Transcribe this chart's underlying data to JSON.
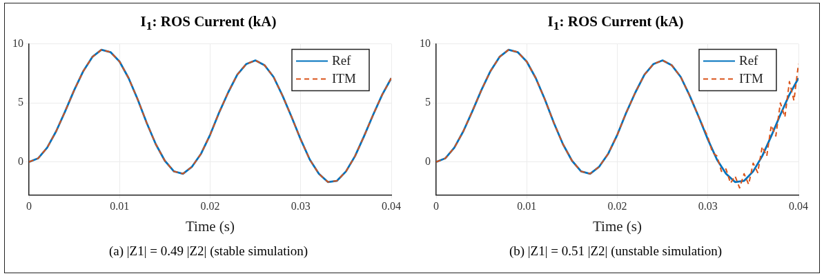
{
  "chart_data": [
    {
      "type": "line",
      "title": "I$_{1}$: ROS Current (kA)",
      "xlabel": "Time (s)",
      "annotations": [
        "(a) |Z1| = 0.49 |Z2| (stable simulation)"
      ],
      "xlim": [
        0,
        0.04
      ],
      "ylim": [
        -2.8,
        10
      ],
      "xticks": [
        0,
        0.01,
        0.02,
        0.03,
        0.04
      ],
      "yticks": [
        0,
        5,
        10
      ],
      "grid": true,
      "legend": "top right",
      "x": [
        0,
        0.001,
        0.002,
        0.003,
        0.004,
        0.005,
        0.006,
        0.007,
        0.008,
        0.009,
        0.01,
        0.011,
        0.012,
        0.013,
        0.014,
        0.015,
        0.016,
        0.017,
        0.018,
        0.019,
        0.02,
        0.021,
        0.022,
        0.023,
        0.024,
        0.025,
        0.026,
        0.027,
        0.028,
        0.029,
        0.03,
        0.031,
        0.032,
        0.033,
        0.034,
        0.035,
        0.036,
        0.037,
        0.038,
        0.039,
        0.04
      ],
      "series": [
        {
          "name": "Ref",
          "color": "#0072bd",
          "line_style": "solid",
          "values": [
            0,
            0.3,
            1.2,
            2.6,
            4.3,
            6.1,
            7.7,
            8.9,
            9.5,
            9.3,
            8.5,
            7.1,
            5.3,
            3.3,
            1.5,
            0.1,
            -0.8,
            -1.0,
            -0.4,
            0.7,
            2.3,
            4.2,
            5.9,
            7.4,
            8.3,
            8.6,
            8.2,
            7.2,
            5.6,
            3.8,
            1.9,
            0.2,
            -1.0,
            -1.7,
            -1.6,
            -0.8,
            0.5,
            2.2,
            4.0,
            5.7,
            7.1
          ]
        },
        {
          "name": "ITM",
          "color": "#d95319",
          "line_style": "dashed",
          "values": [
            0,
            0.3,
            1.2,
            2.6,
            4.3,
            6.1,
            7.7,
            8.9,
            9.5,
            9.3,
            8.5,
            7.1,
            5.3,
            3.3,
            1.5,
            0.1,
            -0.8,
            -1.0,
            -0.4,
            0.7,
            2.3,
            4.2,
            5.9,
            7.4,
            8.3,
            8.6,
            8.2,
            7.2,
            5.6,
            3.8,
            1.9,
            0.2,
            -1.0,
            -1.7,
            -1.6,
            -0.8,
            0.5,
            2.2,
            4.0,
            5.7,
            7.1
          ]
        }
      ]
    },
    {
      "type": "line",
      "title": "I$_{1}$: ROS Current (kA)",
      "xlabel": "Time (s)",
      "annotations": [
        "(b) |Z1| = 0.51 |Z2| (unstable simulation)"
      ],
      "xlim": [
        0,
        0.04
      ],
      "ylim": [
        -2.8,
        10
      ],
      "xticks": [
        0,
        0.01,
        0.02,
        0.03,
        0.04
      ],
      "yticks": [
        0,
        5,
        10
      ],
      "grid": true,
      "legend": "top right",
      "x": [
        0,
        0.001,
        0.002,
        0.003,
        0.004,
        0.005,
        0.006,
        0.007,
        0.008,
        0.009,
        0.01,
        0.011,
        0.012,
        0.013,
        0.014,
        0.015,
        0.016,
        0.017,
        0.018,
        0.019,
        0.02,
        0.021,
        0.022,
        0.023,
        0.024,
        0.025,
        0.026,
        0.027,
        0.028,
        0.029,
        0.03,
        0.031,
        0.032,
        0.033,
        0.034,
        0.035,
        0.036,
        0.037,
        0.038,
        0.039,
        0.04
      ],
      "series": [
        {
          "name": "Ref",
          "color": "#0072bd",
          "line_style": "solid",
          "values": [
            0,
            0.3,
            1.2,
            2.6,
            4.3,
            6.1,
            7.7,
            8.9,
            9.5,
            9.3,
            8.5,
            7.1,
            5.3,
            3.3,
            1.5,
            0.1,
            -0.8,
            -1.0,
            -0.4,
            0.7,
            2.3,
            4.2,
            5.9,
            7.4,
            8.3,
            8.6,
            8.2,
            7.2,
            5.6,
            3.8,
            1.9,
            0.2,
            -1.0,
            -1.7,
            -1.6,
            -0.8,
            0.5,
            2.2,
            4.0,
            5.7,
            7.1
          ]
        },
        {
          "name": "ITM",
          "color": "#d95319",
          "line_style": "dashed",
          "x": [
            0,
            0.001,
            0.002,
            0.003,
            0.004,
            0.005,
            0.006,
            0.007,
            0.008,
            0.009,
            0.01,
            0.011,
            0.012,
            0.013,
            0.014,
            0.015,
            0.016,
            0.017,
            0.018,
            0.019,
            0.02,
            0.021,
            0.022,
            0.023,
            0.024,
            0.025,
            0.026,
            0.027,
            0.028,
            0.029,
            0.03,
            0.0305,
            0.031,
            0.0315,
            0.032,
            0.0325,
            0.033,
            0.0335,
            0.034,
            0.0345,
            0.035,
            0.0355,
            0.036,
            0.0365,
            0.037,
            0.0375,
            0.038,
            0.0385,
            0.039,
            0.0395,
            0.04
          ],
          "values": [
            0,
            0.3,
            1.2,
            2.6,
            4.3,
            6.1,
            7.7,
            8.9,
            9.5,
            9.3,
            8.5,
            7.1,
            5.3,
            3.3,
            1.5,
            0.1,
            -0.8,
            -1.0,
            -0.4,
            0.7,
            2.3,
            4.2,
            5.9,
            7.4,
            8.3,
            8.6,
            8.2,
            7.2,
            5.6,
            3.8,
            2.1,
            0.8,
            0.5,
            -0.8,
            -0.6,
            -1.8,
            -1.2,
            -2.2,
            -1.0,
            -1.9,
            -0.1,
            -0.9,
            1.3,
            0.5,
            3.1,
            2.2,
            5.0,
            3.8,
            6.8,
            5.2,
            8.3
          ]
        }
      ]
    }
  ]
}
